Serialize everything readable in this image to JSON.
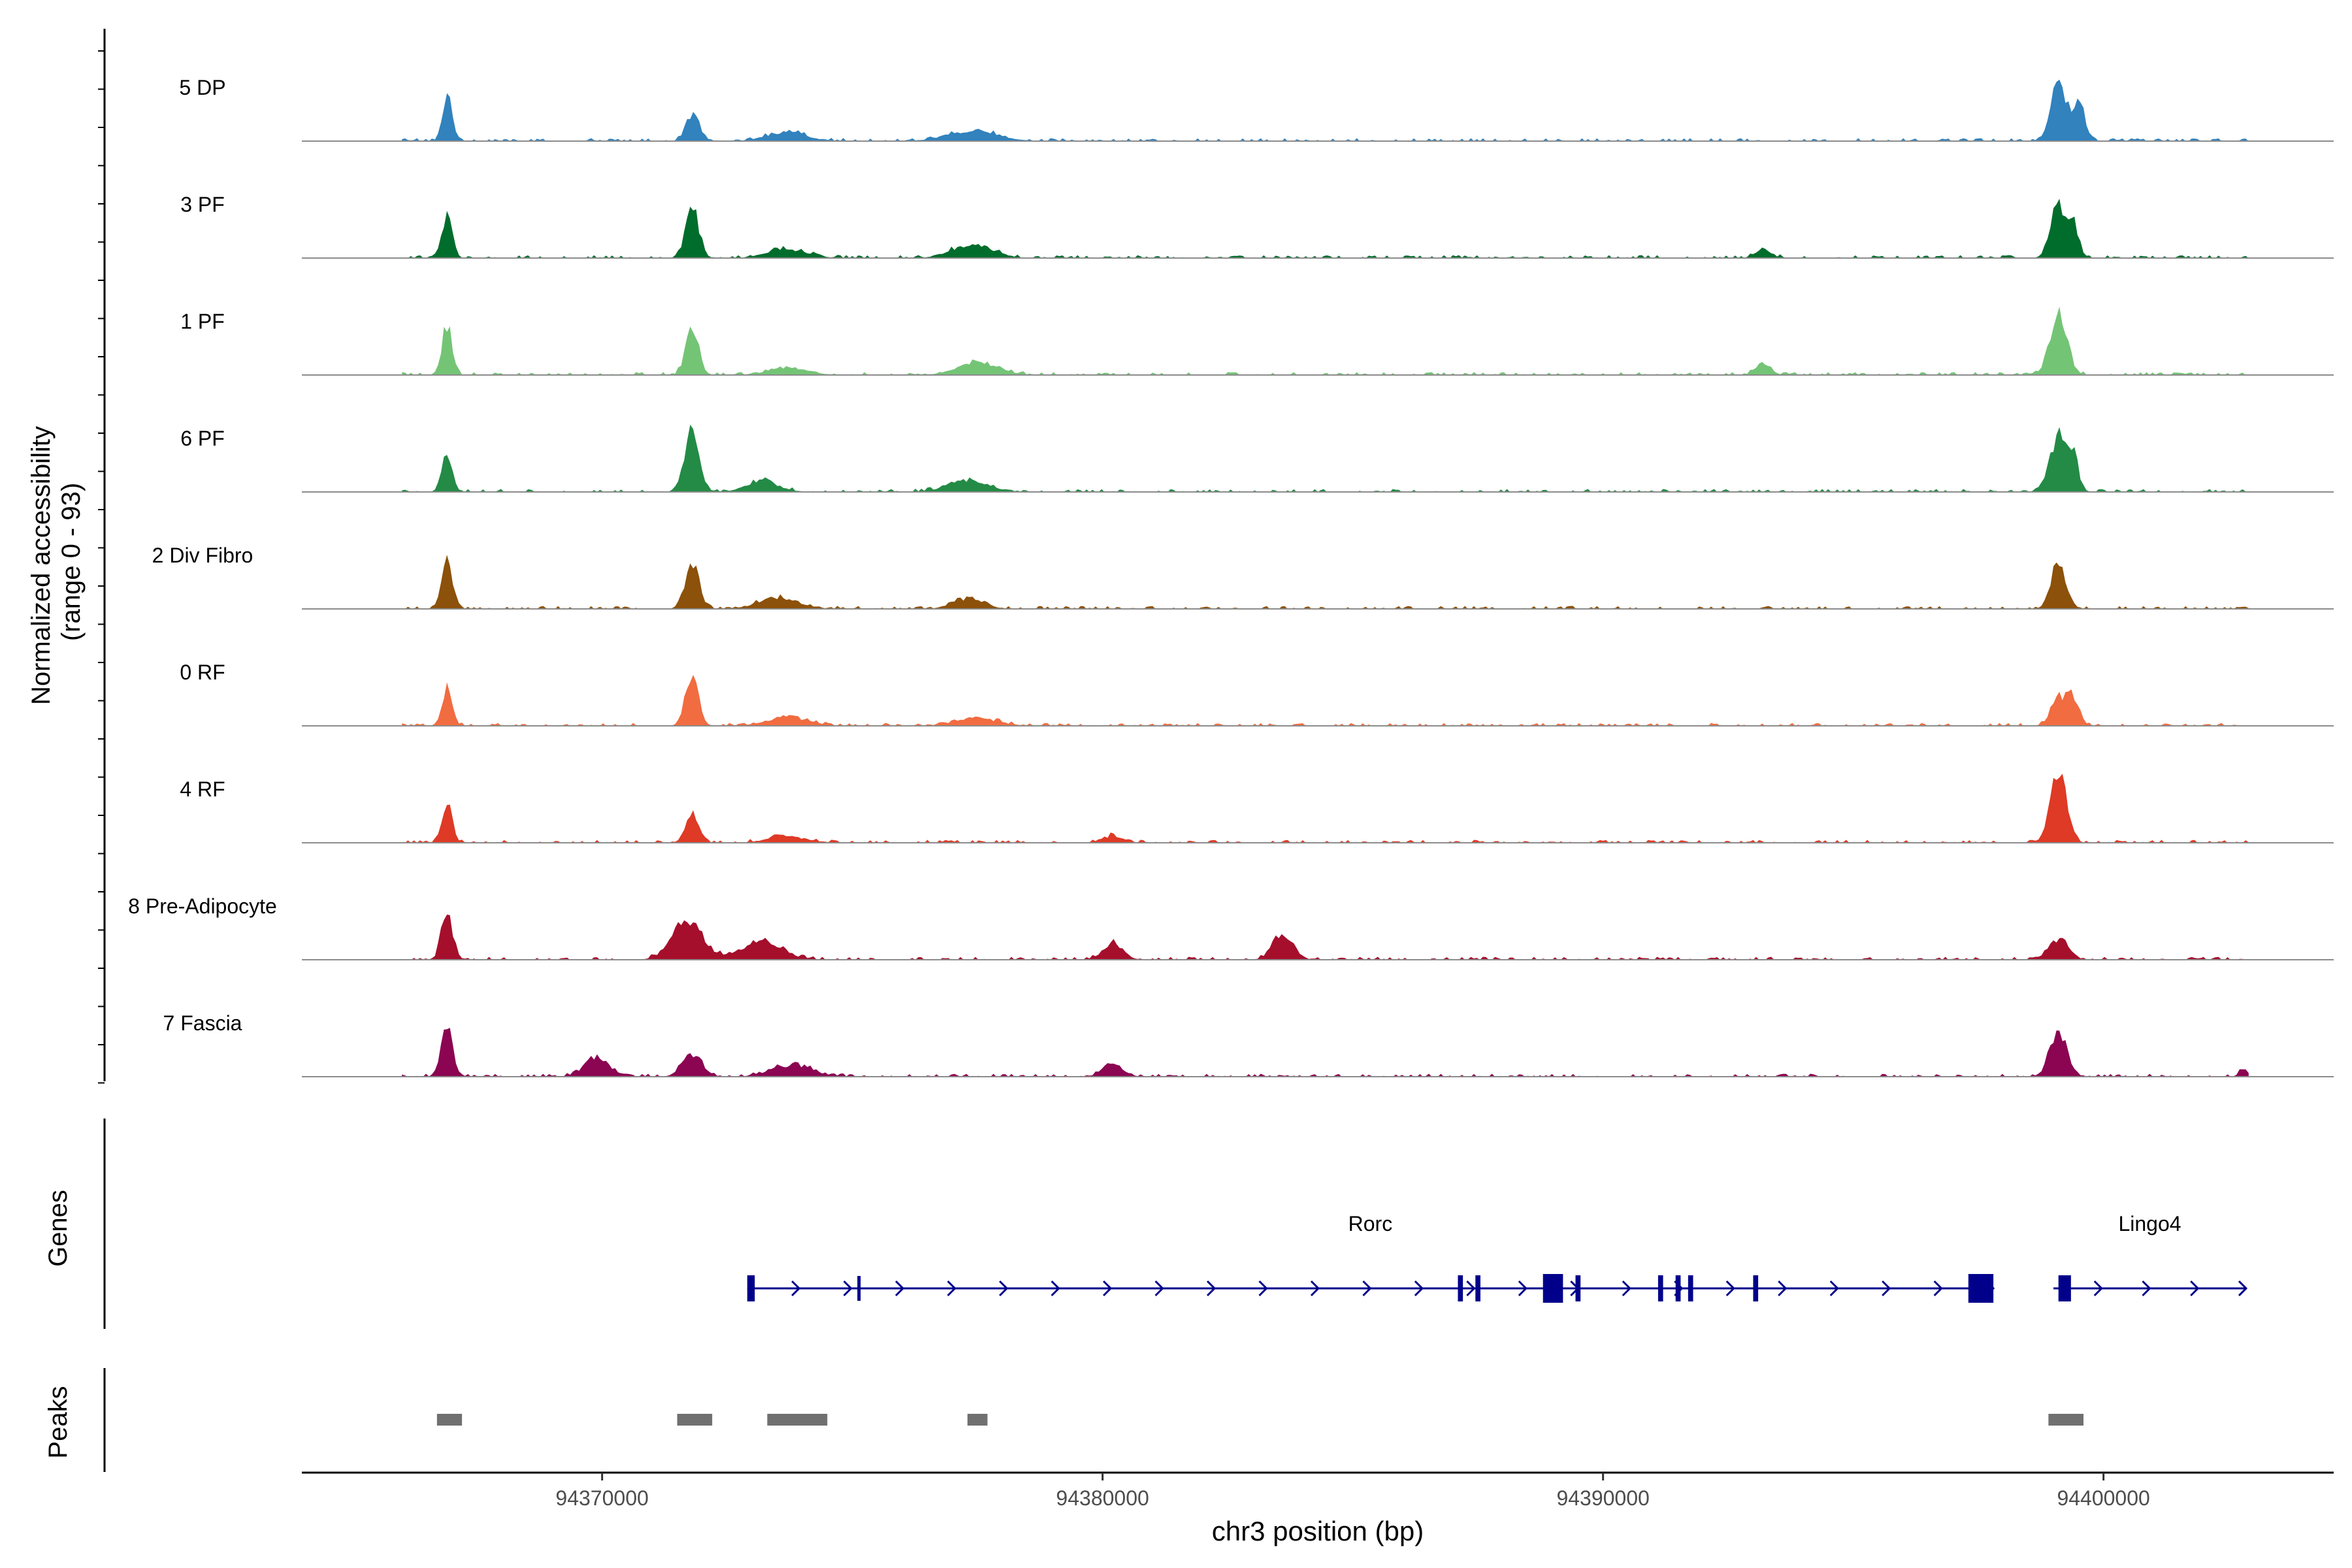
{
  "chart_data": {
    "type": "area",
    "title": "",
    "xlabel": "chr3 position (bp)",
    "ylabel_line1": "Normalized accessibility",
    "ylabel_line2": "(range 0 - 93)",
    "xlim": [
      94364000,
      94404600
    ],
    "ylim": [
      0,
      93
    ],
    "x_ticks": [
      94370000,
      94380000,
      94390000,
      94400000
    ],
    "x_tick_labels": [
      "94370000",
      "94380000",
      "94390000",
      "94400000"
    ],
    "track_labels": {
      "genes": "Genes",
      "peaks": "Peaks"
    },
    "series": [
      {
        "name": "5 DP",
        "color": "#3182bd",
        "peaks": [
          [
            94366900,
            0.58,
            90
          ],
          [
            94371800,
            0.33,
            130
          ],
          [
            94373700,
            0.1,
            400
          ],
          [
            94377400,
            0.12,
            500
          ],
          [
            94399100,
            0.68,
            160
          ],
          [
            94399500,
            0.45,
            120
          ]
        ]
      },
      {
        "name": "3 PF",
        "color": "#006d2c",
        "peaks": [
          [
            94366900,
            0.52,
            100
          ],
          [
            94371800,
            0.62,
            130
          ],
          [
            94373700,
            0.1,
            400
          ],
          [
            94377400,
            0.16,
            400
          ],
          [
            94393200,
            0.12,
            150
          ],
          [
            94399100,
            0.62,
            150
          ],
          [
            94399400,
            0.38,
            110
          ]
        ]
      },
      {
        "name": "1 PF",
        "color": "#74c476",
        "peaks": [
          [
            94366900,
            0.6,
            100
          ],
          [
            94371800,
            0.55,
            130
          ],
          [
            94373700,
            0.08,
            400
          ],
          [
            94377500,
            0.14,
            400
          ],
          [
            94393200,
            0.14,
            150
          ],
          [
            94399100,
            0.7,
            170
          ]
        ]
      },
      {
        "name": "6 PF",
        "color": "#238b45",
        "peaks": [
          [
            94366900,
            0.5,
            100
          ],
          [
            94371800,
            0.8,
            140
          ],
          [
            94373200,
            0.14,
            300
          ],
          [
            94377300,
            0.14,
            400
          ],
          [
            94399100,
            0.65,
            170
          ],
          [
            94399400,
            0.35,
            110
          ]
        ]
      },
      {
        "name": "2 Div Fibro",
        "color": "#8c510a",
        "peaks": [
          [
            94366900,
            0.68,
            100
          ],
          [
            94371800,
            0.52,
            140
          ],
          [
            94373500,
            0.12,
            400
          ],
          [
            94377300,
            0.12,
            300
          ],
          [
            94399100,
            0.55,
            150
          ]
        ]
      },
      {
        "name": "0 RF",
        "color": "#f16c40",
        "peaks": [
          [
            94366900,
            0.45,
            100
          ],
          [
            94371800,
            0.58,
            130
          ],
          [
            94373700,
            0.1,
            400
          ],
          [
            94377500,
            0.09,
            400
          ],
          [
            94399100,
            0.32,
            150
          ],
          [
            94399400,
            0.32,
            120
          ]
        ]
      },
      {
        "name": "4 RF",
        "color": "#de3a26",
        "peaks": [
          [
            94366900,
            0.5,
            100
          ],
          [
            94371800,
            0.33,
            130
          ],
          [
            94373700,
            0.07,
            400
          ],
          [
            94380200,
            0.08,
            200
          ],
          [
            94399100,
            0.85,
            160
          ]
        ]
      },
      {
        "name": "8 Pre-Adipocyte",
        "color": "#a50f2c",
        "peaks": [
          [
            94366900,
            0.58,
            110
          ],
          [
            94371700,
            0.48,
            300
          ],
          [
            94373200,
            0.22,
            400
          ],
          [
            94380200,
            0.2,
            200
          ],
          [
            94383600,
            0.32,
            200
          ],
          [
            94399100,
            0.24,
            200
          ]
        ]
      },
      {
        "name": "7 Fascia",
        "color": "#8b0552",
        "peaks": [
          [
            94366900,
            0.62,
            110
          ],
          [
            94369900,
            0.22,
            250
          ],
          [
            94371800,
            0.26,
            200
          ],
          [
            94373800,
            0.14,
            400
          ],
          [
            94380200,
            0.16,
            200
          ],
          [
            94399100,
            0.55,
            170
          ],
          [
            94402800,
            0.1,
            80
          ]
        ]
      }
    ],
    "genes": [
      {
        "name": "Rorc",
        "start": 94372900,
        "end": 94397800,
        "strand": "+",
        "exons": [
          [
            94372900,
            94373050
          ],
          [
            94375100,
            94375160
          ],
          [
            94387100,
            94387200
          ],
          [
            94387450,
            94387550
          ],
          [
            94388800,
            94389200
          ],
          [
            94389450,
            94389550
          ],
          [
            94391100,
            94391200
          ],
          [
            94391450,
            94391550
          ],
          [
            94391700,
            94391800
          ],
          [
            94393000,
            94393100
          ],
          [
            94397300,
            94397800
          ]
        ]
      },
      {
        "name": "Lingo4",
        "start": 94399000,
        "end": 94402850,
        "strand": "+",
        "exons": [
          [
            94399100,
            94399350
          ]
        ]
      }
    ],
    "called_peaks": [
      [
        94366700,
        94367200
      ],
      [
        94371500,
        94372200
      ],
      [
        94373300,
        94374500
      ],
      [
        94377300,
        94377700
      ],
      [
        94398900,
        94399600
      ]
    ]
  }
}
